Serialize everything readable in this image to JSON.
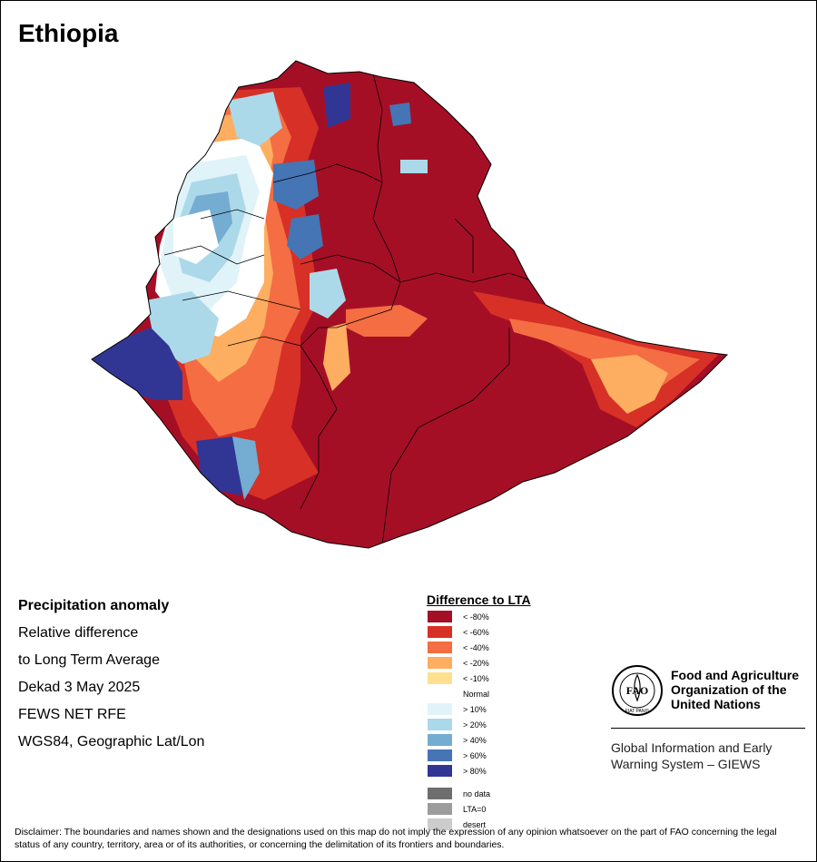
{
  "map": {
    "title": "Ethiopia"
  },
  "info": {
    "title": "Precipitation anomaly",
    "lines": [
      "Relative difference",
      "to Long Term Average",
      "Dekad 3 May 2025",
      "FEWS NET RFE",
      "WGS84, Geographic Lat/Lon"
    ]
  },
  "legend": {
    "title": "Difference to LTA",
    "items": [
      {
        "label": "< -80%",
        "color": "#a50f26"
      },
      {
        "label": "< -60%",
        "color": "#d73027"
      },
      {
        "label": "< -40%",
        "color": "#f46d43"
      },
      {
        "label": "< -20%",
        "color": "#fdae61"
      },
      {
        "label": "< -10%",
        "color": "#fee090"
      },
      {
        "label": "Normal",
        "color": "#ffffff"
      },
      {
        "label": "> 10%",
        "color": "#e0f3f8"
      },
      {
        "label": "> 20%",
        "color": "#abd9e9"
      },
      {
        "label": "> 40%",
        "color": "#74add1"
      },
      {
        "label": "> 60%",
        "color": "#4575b4"
      },
      {
        "label": "> 80%",
        "color": "#313695"
      }
    ],
    "extras": [
      {
        "label": "no data",
        "color": "#6e6e6e"
      },
      {
        "label": "LTA=0",
        "color": "#9c9c9c"
      },
      {
        "label": "desert",
        "color": "#cccccc"
      }
    ]
  },
  "organization": {
    "name_line1": "Food and Agriculture",
    "name_line2": "Organization of the",
    "name_line3": "United Nations",
    "emblem_letters": "FAO",
    "emblem_motto": "FIAT PANIS",
    "system_line1": "Global Information and Early",
    "system_line2": "Warning System – GIEWS"
  },
  "disclaimer": "Disclaimer: The boundaries and names shown and the designations used on this map do not imply the expression of any opinion whatsoever on the part of FAO concerning the legal status of any country, territory, area or of its authorities, or concerning the delimitation of its frontiers and boundaries."
}
